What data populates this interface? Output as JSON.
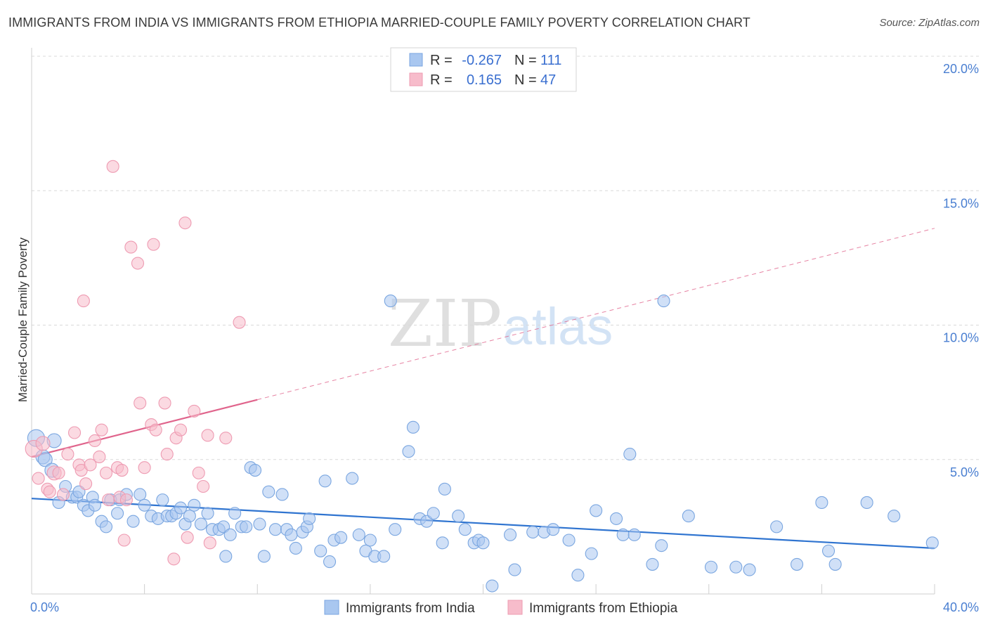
{
  "header": {
    "title": "IMMIGRANTS FROM INDIA VS IMMIGRANTS FROM ETHIOPIA MARRIED-COUPLE FAMILY POVERTY CORRELATION CHART",
    "source": "Source: ZipAtlas.com"
  },
  "watermark": {
    "zip": "ZIP",
    "atlas": "atlas"
  },
  "colors": {
    "india_fill": "#a9c7f0",
    "india_stroke": "#7aa6e0",
    "india_line": "#2f74d0",
    "ethiopia_fill": "#f7bccb",
    "ethiopia_stroke": "#ee9bb2",
    "ethiopia_line": "#e0648c",
    "grid": "#d9d9d9",
    "tick_label": "#4a7fd1"
  },
  "legend": {
    "rows": [
      {
        "r_label": "R =",
        "r_value": "-0.267",
        "n_label": "N =",
        "n_value": "111"
      },
      {
        "r_label": "R =",
        "r_value": "0.165",
        "n_label": "N =",
        "n_value": "47"
      }
    ]
  },
  "bottom_legend": {
    "india": "Immigrants from India",
    "ethiopia": "Immigrants from Ethiopia"
  },
  "chart_data": {
    "type": "scatter",
    "title": "IMMIGRANTS FROM INDIA VS IMMIGRANTS FROM ETHIOPIA MARRIED-COUPLE FAMILY POVERTY CORRELATION CHART",
    "xlabel": "",
    "ylabel": "Married-Couple Family Poverty",
    "xlim": [
      0,
      40
    ],
    "ylim": [
      0,
      20
    ],
    "x_tick_labels": [
      {
        "value": 0,
        "label": "0.0%"
      },
      {
        "value": 40,
        "label": "40.0%"
      }
    ],
    "y_tick_labels": [
      {
        "value": 5,
        "label": "5.0%"
      },
      {
        "value": 10,
        "label": "10.0%"
      },
      {
        "value": 15,
        "label": "15.0%"
      },
      {
        "value": 20,
        "label": "20.0%"
      }
    ],
    "series": [
      {
        "name": "Immigrants from India",
        "R": -0.267,
        "N": 111,
        "trend": {
          "x0": 0,
          "y0": 3.55,
          "x1": 40,
          "y1": 1.7,
          "solid_to": 40
        },
        "points": [
          [
            0.2,
            5.8
          ],
          [
            0.5,
            5.1
          ],
          [
            0.6,
            5.0
          ],
          [
            1.0,
            5.7
          ],
          [
            0.9,
            4.6
          ],
          [
            1.2,
            3.4
          ],
          [
            1.5,
            4.0
          ],
          [
            1.8,
            3.6
          ],
          [
            2.0,
            3.6
          ],
          [
            2.1,
            3.8
          ],
          [
            2.3,
            3.3
          ],
          [
            2.5,
            3.1
          ],
          [
            2.7,
            3.6
          ],
          [
            2.8,
            3.3
          ],
          [
            3.1,
            2.7
          ],
          [
            3.3,
            2.5
          ],
          [
            3.5,
            3.5
          ],
          [
            3.8,
            3.0
          ],
          [
            3.9,
            3.5
          ],
          [
            4.2,
            3.7
          ],
          [
            4.5,
            2.7
          ],
          [
            4.8,
            3.7
          ],
          [
            5.0,
            3.3
          ],
          [
            5.3,
            2.9
          ],
          [
            5.6,
            2.8
          ],
          [
            5.8,
            3.5
          ],
          [
            6.0,
            2.9
          ],
          [
            6.2,
            2.9
          ],
          [
            6.4,
            3.0
          ],
          [
            6.6,
            3.2
          ],
          [
            6.8,
            2.6
          ],
          [
            7.0,
            2.9
          ],
          [
            7.2,
            3.3
          ],
          [
            7.5,
            2.6
          ],
          [
            7.8,
            3.0
          ],
          [
            8.0,
            2.4
          ],
          [
            8.3,
            2.4
          ],
          [
            8.5,
            2.5
          ],
          [
            8.6,
            1.4
          ],
          [
            8.8,
            2.2
          ],
          [
            9.0,
            3.0
          ],
          [
            9.3,
            2.5
          ],
          [
            9.5,
            2.5
          ],
          [
            9.7,
            4.7
          ],
          [
            9.9,
            4.6
          ],
          [
            10.1,
            2.6
          ],
          [
            10.3,
            1.4
          ],
          [
            10.5,
            3.8
          ],
          [
            10.8,
            2.4
          ],
          [
            11.1,
            3.7
          ],
          [
            11.3,
            2.4
          ],
          [
            11.5,
            2.2
          ],
          [
            11.7,
            1.7
          ],
          [
            12.0,
            2.3
          ],
          [
            12.2,
            2.5
          ],
          [
            12.3,
            2.8
          ],
          [
            12.8,
            1.6
          ],
          [
            13.0,
            4.2
          ],
          [
            13.2,
            1.2
          ],
          [
            13.4,
            2.0
          ],
          [
            13.7,
            2.1
          ],
          [
            14.2,
            4.3
          ],
          [
            14.5,
            2.2
          ],
          [
            14.8,
            1.6
          ],
          [
            15.0,
            2.0
          ],
          [
            15.2,
            1.4
          ],
          [
            15.6,
            1.4
          ],
          [
            15.9,
            10.9
          ],
          [
            16.1,
            2.4
          ],
          [
            16.7,
            5.3
          ],
          [
            16.9,
            6.2
          ],
          [
            17.2,
            2.8
          ],
          [
            17.5,
            2.7
          ],
          [
            17.8,
            3.0
          ],
          [
            18.2,
            1.9
          ],
          [
            18.3,
            3.9
          ],
          [
            18.9,
            2.9
          ],
          [
            19.2,
            2.4
          ],
          [
            19.6,
            1.9
          ],
          [
            19.8,
            2.0
          ],
          [
            20.0,
            1.9
          ],
          [
            20.4,
            0.3
          ],
          [
            21.2,
            2.2
          ],
          [
            21.4,
            0.9
          ],
          [
            22.2,
            2.3
          ],
          [
            22.7,
            2.3
          ],
          [
            23.1,
            2.4
          ],
          [
            23.8,
            2.0
          ],
          [
            24.2,
            0.7
          ],
          [
            24.8,
            1.5
          ],
          [
            25.0,
            3.1
          ],
          [
            25.9,
            2.8
          ],
          [
            26.2,
            2.2
          ],
          [
            26.5,
            5.2
          ],
          [
            26.7,
            2.2
          ],
          [
            27.5,
            1.1
          ],
          [
            27.9,
            1.8
          ],
          [
            28.0,
            10.9
          ],
          [
            29.1,
            2.9
          ],
          [
            30.1,
            1.0
          ],
          [
            31.2,
            1.0
          ],
          [
            31.8,
            0.9
          ],
          [
            33.0,
            2.5
          ],
          [
            33.9,
            1.1
          ],
          [
            35.0,
            3.4
          ],
          [
            35.3,
            1.6
          ],
          [
            35.6,
            1.1
          ],
          [
            37.0,
            3.4
          ],
          [
            38.2,
            2.9
          ],
          [
            39.9,
            1.9
          ]
        ]
      },
      {
        "name": "Immigrants from Ethiopia",
        "R": 0.165,
        "N": 47,
        "trend": {
          "x0": 0,
          "y0": 5.1,
          "x1": 40,
          "y1": 13.6,
          "solid_to": 10.0
        },
        "points": [
          [
            0.1,
            5.4
          ],
          [
            0.3,
            4.3
          ],
          [
            0.5,
            5.6
          ],
          [
            0.7,
            3.9
          ],
          [
            0.8,
            3.8
          ],
          [
            1.0,
            4.5
          ],
          [
            1.2,
            4.5
          ],
          [
            1.4,
            3.7
          ],
          [
            1.6,
            5.2
          ],
          [
            1.9,
            6.0
          ],
          [
            2.1,
            4.8
          ],
          [
            2.2,
            4.6
          ],
          [
            2.3,
            10.9
          ],
          [
            2.4,
            4.1
          ],
          [
            2.6,
            4.8
          ],
          [
            2.8,
            5.7
          ],
          [
            3.0,
            5.1
          ],
          [
            3.1,
            6.1
          ],
          [
            3.3,
            4.5
          ],
          [
            3.4,
            3.5
          ],
          [
            3.6,
            15.9
          ],
          [
            3.8,
            4.7
          ],
          [
            3.9,
            3.6
          ],
          [
            4.0,
            4.6
          ],
          [
            4.1,
            2.0
          ],
          [
            4.2,
            3.5
          ],
          [
            4.4,
            12.9
          ],
          [
            4.7,
            12.3
          ],
          [
            4.8,
            7.1
          ],
          [
            5.0,
            4.7
          ],
          [
            5.3,
            6.3
          ],
          [
            5.4,
            13.0
          ],
          [
            5.5,
            6.1
          ],
          [
            5.9,
            7.1
          ],
          [
            6.0,
            5.2
          ],
          [
            6.3,
            1.3
          ],
          [
            6.4,
            5.8
          ],
          [
            6.6,
            6.1
          ],
          [
            6.8,
            13.8
          ],
          [
            6.9,
            2.1
          ],
          [
            7.2,
            6.8
          ],
          [
            7.4,
            4.5
          ],
          [
            7.6,
            4.0
          ],
          [
            7.8,
            5.9
          ],
          [
            7.9,
            1.9
          ],
          [
            8.6,
            5.8
          ],
          [
            9.2,
            10.1
          ]
        ]
      }
    ]
  }
}
